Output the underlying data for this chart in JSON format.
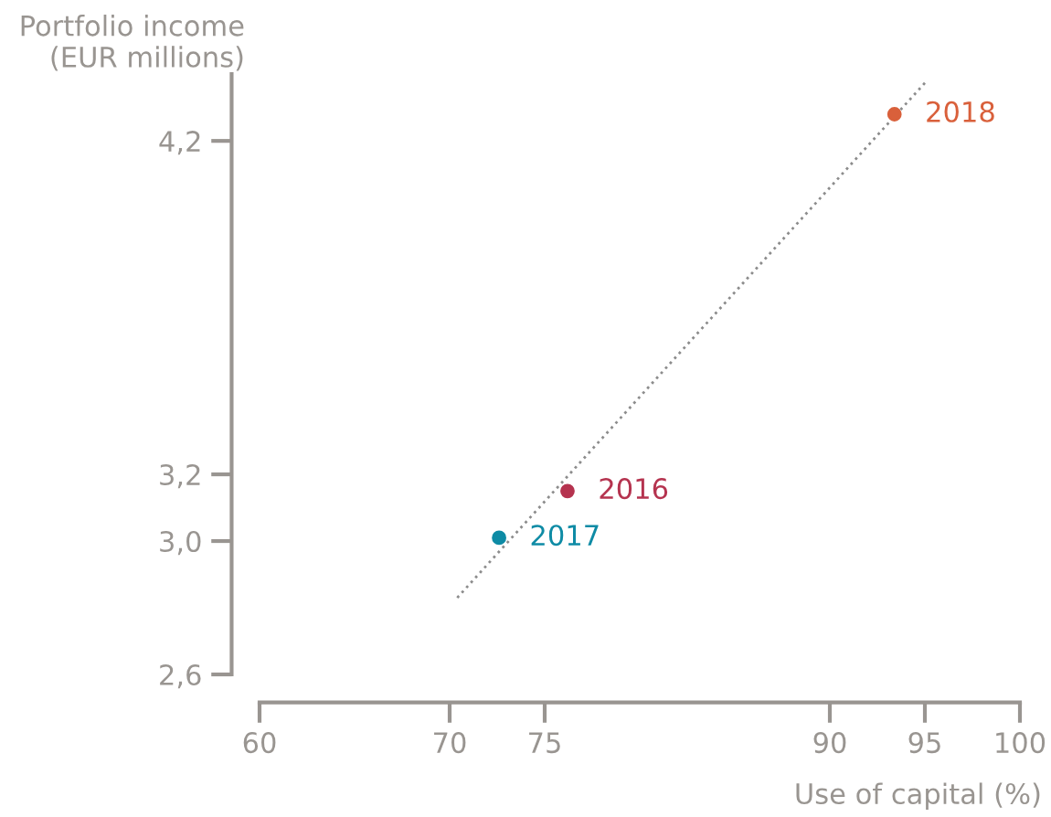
{
  "chart_data": {
    "type": "scatter",
    "xlabel": "Use of capital (%)",
    "ylabel": "Portfolio income\n(EUR millions)",
    "xlim": [
      60,
      100
    ],
    "xticks": [
      60,
      70,
      75,
      90,
      95,
      100
    ],
    "ylim": [
      2.6,
      4.4
    ],
    "yticks": [
      {
        "value": 2.6,
        "label": "2,6"
      },
      {
        "value": 3.0,
        "label": "3,0"
      },
      {
        "value": 3.2,
        "label": "3,2"
      },
      {
        "value": 4.2,
        "label": "4,2"
      }
    ],
    "grid": false,
    "legend": false,
    "marker": "circle",
    "series": [
      {
        "type": "line",
        "line_style": "dotted",
        "marker": "none",
        "color": "#8c8c8c",
        "x": [
          70.4,
          95.1
        ],
        "values": [
          2.83,
          4.38
        ]
      },
      {
        "name": "2016",
        "color": "#b5334f",
        "x": [
          76.2
        ],
        "values": [
          3.15
        ]
      },
      {
        "name": "2017",
        "color": "#0e8ba5",
        "x": [
          72.6
        ],
        "values": [
          3.01
        ]
      },
      {
        "name": "2018",
        "color": "#d9603b",
        "x": [
          93.4
        ],
        "values": [
          4.28
        ]
      }
    ]
  }
}
